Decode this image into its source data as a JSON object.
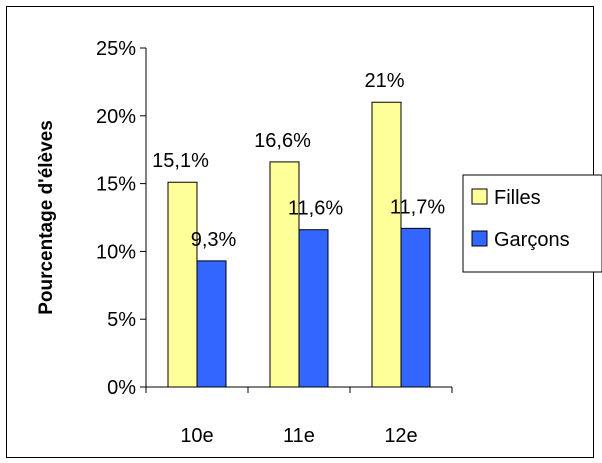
{
  "chart_data": {
    "type": "bar",
    "categories": [
      "10e",
      "11e",
      "12e"
    ],
    "series": [
      {
        "name": "Filles",
        "values": [
          15.1,
          16.6,
          21
        ],
        "labels": [
          "15,1%",
          "16,6%",
          "21%"
        ],
        "color": "#ffff99"
      },
      {
        "name": "Garçons",
        "values": [
          9.3,
          11.6,
          11.7
        ],
        "labels": [
          "9,3%",
          "11,6%",
          "11,7%"
        ],
        "color": "#3366ff"
      }
    ],
    "ylabel": "Pourcentage d'élèves",
    "ylim": [
      0,
      25
    ],
    "yticks": [
      "0%",
      "5%",
      "10%",
      "15%",
      "20%",
      "25%"
    ],
    "legend_position": "right",
    "grid": false
  }
}
